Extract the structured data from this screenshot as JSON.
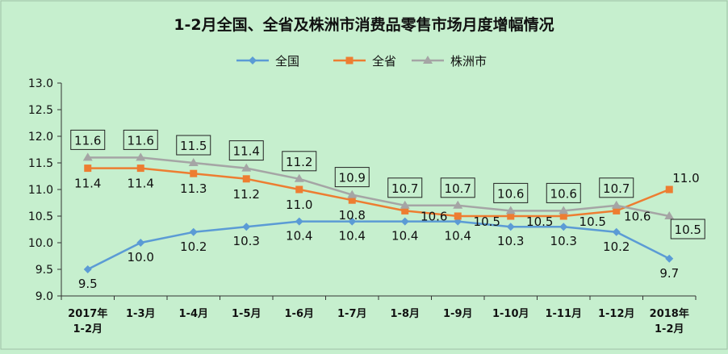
{
  "chart_data": {
    "type": "line",
    "title": "1-2月全国、全省及株洲市消费品零售市场月度增幅情况",
    "categories": [
      [
        "2017年",
        "1-2月"
      ],
      [
        "1-3月"
      ],
      [
        "1-4月"
      ],
      [
        "1-5月"
      ],
      [
        "1-6月"
      ],
      [
        "1-7月"
      ],
      [
        "1-8月"
      ],
      [
        "1-9月"
      ],
      [
        "1-10月"
      ],
      [
        "1-11月"
      ],
      [
        "1-12月"
      ],
      [
        "2018年",
        "1-2月"
      ]
    ],
    "ylim": [
      9.0,
      13.0
    ],
    "yticks": [
      "9.0",
      "9.5",
      "10.0",
      "10.5",
      "11.0",
      "11.5",
      "12.0",
      "12.5",
      "13.0"
    ],
    "grid": false,
    "legend_position": "top",
    "series": [
      {
        "name": "全国",
        "color": "#5b9bd5",
        "marker": "diamond",
        "values": [
          9.5,
          10.0,
          10.2,
          10.3,
          10.4,
          10.4,
          10.4,
          10.4,
          10.3,
          10.3,
          10.2,
          9.7
        ],
        "labels": [
          "9.5",
          "10.0",
          "10.2",
          "10.3",
          "10.4",
          "10.4",
          "10.4",
          "10.4",
          "10.3",
          "10.3",
          "10.2",
          "9.7"
        ]
      },
      {
        "name": "全省",
        "color": "#ed7d31",
        "marker": "square",
        "values": [
          11.4,
          11.4,
          11.3,
          11.2,
          11.0,
          10.8,
          10.6,
          10.5,
          10.5,
          10.5,
          10.6,
          11.0
        ],
        "labels": [
          "11.4",
          "11.4",
          "11.3",
          "11.2",
          "11.0",
          "10.8",
          "10.6",
          "10.5",
          "10.5",
          "10.5",
          "10.6",
          "11.0"
        ]
      },
      {
        "name": "株洲市",
        "color": "#a5a5a5",
        "marker": "triangle",
        "values": [
          11.6,
          11.6,
          11.5,
          11.4,
          11.2,
          10.9,
          10.7,
          10.7,
          10.6,
          10.6,
          10.7,
          10.5
        ],
        "labels": [
          "11.6",
          "11.6",
          "11.5",
          "11.4",
          "11.2",
          "10.9",
          "10.7",
          "10.7",
          "10.6",
          "10.6",
          "10.7",
          "10.5"
        ]
      }
    ]
  }
}
